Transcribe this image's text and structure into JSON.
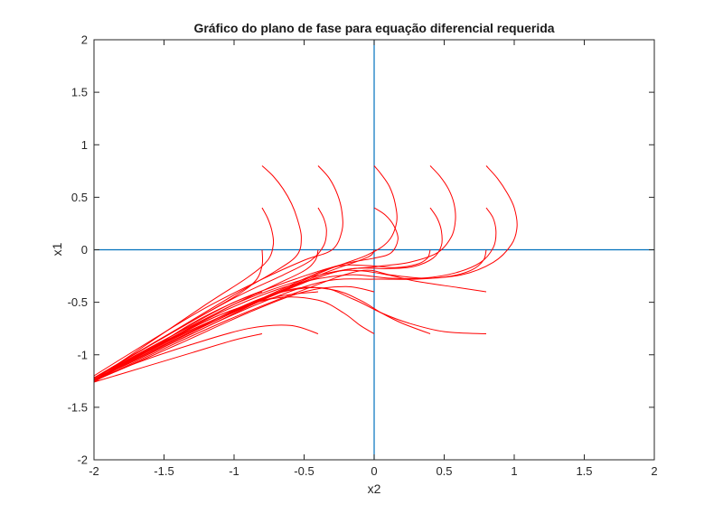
{
  "chart_data": {
    "type": "line",
    "title": "Gráfico do plano de fase para equação diferencial requerida",
    "xlabel": "x2",
    "ylabel": "x1",
    "xlim": [
      -2,
      2
    ],
    "ylim": [
      -2,
      2
    ],
    "x_ticks": [
      -2,
      -1.5,
      -1,
      -0.5,
      0,
      0.5,
      1,
      1.5,
      2
    ],
    "y_ticks": [
      -2,
      -1.5,
      -1,
      -0.5,
      0,
      0.5,
      1,
      1.5,
      2
    ],
    "x_tick_labels": [
      "-2",
      "-1.5",
      "-1",
      "-0.5",
      "0",
      "0.5",
      "1",
      "1.5",
      "2"
    ],
    "y_tick_labels": [
      "-2",
      "-1.5",
      "-1",
      "-0.5",
      "0",
      "0.5",
      "1",
      "1.5",
      "2"
    ],
    "grid": false,
    "reference_lines": {
      "color": "#0072BD",
      "x": 0,
      "y": 0
    },
    "series_color": "#FF0000",
    "series": [
      {
        "x": [
          -0.8,
          -0.72,
          -0.65,
          -0.59,
          -0.55,
          -0.52,
          -0.55,
          -0.7,
          -1.0,
          -1.4,
          -2.0
        ],
        "y": [
          0.8,
          0.7,
          0.58,
          0.44,
          0.3,
          0.12,
          -0.05,
          -0.2,
          -0.43,
          -0.75,
          -1.22
        ]
      },
      {
        "x": [
          -0.4,
          -0.32,
          -0.26,
          -0.23,
          -0.23,
          -0.3,
          -0.5,
          -0.8,
          -1.2,
          -1.6,
          -2.0
        ],
        "y": [
          0.8,
          0.68,
          0.52,
          0.36,
          0.18,
          0.0,
          -0.1,
          -0.28,
          -0.55,
          -0.87,
          -1.2
        ]
      },
      {
        "x": [
          0.0,
          0.05,
          0.11,
          0.15,
          0.16,
          0.1,
          -0.05,
          -0.35,
          -0.8,
          -1.4,
          -2.0
        ],
        "y": [
          0.8,
          0.72,
          0.6,
          0.44,
          0.26,
          0.08,
          -0.05,
          -0.2,
          -0.47,
          -0.82,
          -1.22
        ]
      },
      {
        "x": [
          0.4,
          0.47,
          0.53,
          0.57,
          0.58,
          0.55,
          0.45,
          0.25,
          0.02,
          -0.3,
          -0.8,
          -1.4,
          -2.0
        ],
        "y": [
          0.8,
          0.7,
          0.58,
          0.44,
          0.28,
          0.12,
          -0.03,
          -0.12,
          -0.16,
          -0.22,
          -0.48,
          -0.84,
          -1.24
        ]
      },
      {
        "x": [
          0.8,
          0.88,
          0.95,
          1.0,
          1.02,
          0.98,
          0.85,
          0.62,
          0.3,
          0.0,
          -0.35,
          -0.8,
          -1.4,
          -2.0
        ],
        "y": [
          0.8,
          0.68,
          0.54,
          0.4,
          0.22,
          0.05,
          -0.12,
          -0.24,
          -0.28,
          -0.28,
          -0.3,
          -0.5,
          -0.86,
          -1.24
        ]
      },
      {
        "x": [
          -0.8,
          -0.76,
          -0.73,
          -0.72,
          -0.76,
          -0.9,
          -1.2,
          -1.6,
          -2.0
        ],
        "y": [
          0.4,
          0.3,
          0.18,
          0.05,
          -0.1,
          -0.26,
          -0.52,
          -0.88,
          -1.24
        ]
      },
      {
        "x": [
          -0.4,
          -0.36,
          -0.34,
          -0.36,
          -0.45,
          -0.65,
          -1.0,
          -1.5,
          -2.0
        ],
        "y": [
          0.4,
          0.3,
          0.18,
          0.04,
          -0.1,
          -0.24,
          -0.46,
          -0.83,
          -1.22
        ]
      },
      {
        "x": [
          0.0,
          0.08,
          0.14,
          0.17,
          0.12,
          0.0,
          -0.2,
          -0.5,
          -1.0,
          -1.5,
          -2.0
        ],
        "y": [
          0.4,
          0.33,
          0.23,
          0.1,
          -0.03,
          -0.08,
          -0.13,
          -0.25,
          -0.5,
          -0.86,
          -1.22
        ]
      },
      {
        "x": [
          0.4,
          0.45,
          0.48,
          0.48,
          0.42,
          0.28,
          0.1,
          -0.15,
          -0.5,
          -1.0,
          -1.5,
          -2.0
        ],
        "y": [
          0.4,
          0.3,
          0.18,
          0.04,
          -0.08,
          -0.16,
          -0.18,
          -0.18,
          -0.28,
          -0.52,
          -0.88,
          -1.24
        ]
      },
      {
        "x": [
          0.8,
          0.85,
          0.87,
          0.85,
          0.76,
          0.58,
          0.35,
          0.1,
          -0.2,
          -0.6,
          -1.1,
          -1.6,
          -2.0
        ],
        "y": [
          0.4,
          0.3,
          0.16,
          0.02,
          -0.12,
          -0.22,
          -0.27,
          -0.27,
          -0.24,
          -0.34,
          -0.6,
          -0.95,
          -1.24
        ]
      },
      {
        "x": [
          -0.8,
          -0.8,
          -0.85,
          -1.0,
          -1.3,
          -1.65,
          -2.0
        ],
        "y": [
          0.0,
          -0.15,
          -0.3,
          -0.45,
          -0.68,
          -0.95,
          -1.22
        ]
      },
      {
        "x": [
          -0.4,
          -0.42,
          -0.5,
          -0.7,
          -1.0,
          -1.5,
          -2.0
        ],
        "y": [
          0.0,
          -0.1,
          -0.2,
          -0.33,
          -0.52,
          -0.86,
          -1.22
        ]
      },
      {
        "x": [
          0.0,
          -0.02,
          -0.1,
          -0.35,
          -0.8,
          -1.4,
          -2.0
        ],
        "y": [
          0.0,
          -0.05,
          -0.1,
          -0.22,
          -0.47,
          -0.82,
          -1.22
        ]
      },
      {
        "x": [
          0.4,
          0.38,
          0.3,
          0.15,
          -0.05,
          -0.3,
          -0.7,
          -1.2,
          -2.0
        ],
        "y": [
          0.0,
          -0.08,
          -0.14,
          -0.17,
          -0.15,
          -0.17,
          -0.4,
          -0.72,
          -1.23
        ]
      },
      {
        "x": [
          0.8,
          0.78,
          0.7,
          0.55,
          0.35,
          0.12,
          -0.1,
          -0.5,
          -1.1,
          -2.0
        ],
        "y": [
          0.0,
          -0.1,
          -0.19,
          -0.25,
          -0.27,
          -0.24,
          -0.2,
          -0.38,
          -0.7,
          -1.25
        ]
      },
      {
        "x": [
          -0.8,
          -1.0,
          -1.3,
          -1.6,
          -2.0
        ],
        "y": [
          -0.4,
          -0.5,
          -0.7,
          -0.95,
          -1.26
        ]
      },
      {
        "x": [
          -0.4,
          -0.7,
          -1.1,
          -1.55,
          -2.0
        ],
        "y": [
          -0.4,
          -0.45,
          -0.62,
          -0.92,
          -1.25
        ]
      },
      {
        "x": [
          0.0,
          -0.2,
          -0.5,
          -0.9,
          -1.4,
          -2.0
        ],
        "y": [
          -0.4,
          -0.35,
          -0.4,
          -0.6,
          -0.9,
          -1.25
        ]
      },
      {
        "x": [
          0.8,
          0.6,
          0.3,
          0.1,
          -0.1,
          -0.3,
          -0.7,
          -1.3,
          -2.0
        ],
        "y": [
          -0.4,
          -0.36,
          -0.3,
          -0.24,
          -0.2,
          -0.22,
          -0.42,
          -0.8,
          -1.24
        ]
      },
      {
        "x": [
          -0.8,
          -1.0,
          -1.3,
          -1.65,
          -2.0
        ],
        "y": [
          -0.8,
          -0.86,
          -0.98,
          -1.12,
          -1.26
        ]
      },
      {
        "x": [
          -0.4,
          -0.6,
          -0.9,
          -1.3,
          -1.7,
          -2.0
        ],
        "y": [
          -0.8,
          -0.72,
          -0.75,
          -0.9,
          -1.08,
          -1.25
        ]
      },
      {
        "x": [
          0.0,
          -0.1,
          -0.22,
          -0.4,
          -0.7,
          -1.1,
          -1.6,
          -2.0
        ],
        "y": [
          -0.8,
          -0.72,
          -0.6,
          -0.48,
          -0.46,
          -0.62,
          -0.94,
          -1.24
        ]
      },
      {
        "x": [
          0.4,
          0.2,
          0.05,
          -0.1,
          -0.3,
          -0.6,
          -1.1,
          -1.6,
          -2.0
        ],
        "y": [
          -0.8,
          -0.7,
          -0.6,
          -0.48,
          -0.38,
          -0.38,
          -0.64,
          -0.96,
          -1.24
        ]
      },
      {
        "x": [
          0.8,
          0.5,
          0.25,
          0.05,
          -0.15,
          -0.4,
          -0.8,
          -1.4,
          -2.0
        ],
        "y": [
          -0.8,
          -0.78,
          -0.7,
          -0.6,
          -0.47,
          -0.36,
          -0.46,
          -0.84,
          -1.24
        ]
      }
    ]
  }
}
